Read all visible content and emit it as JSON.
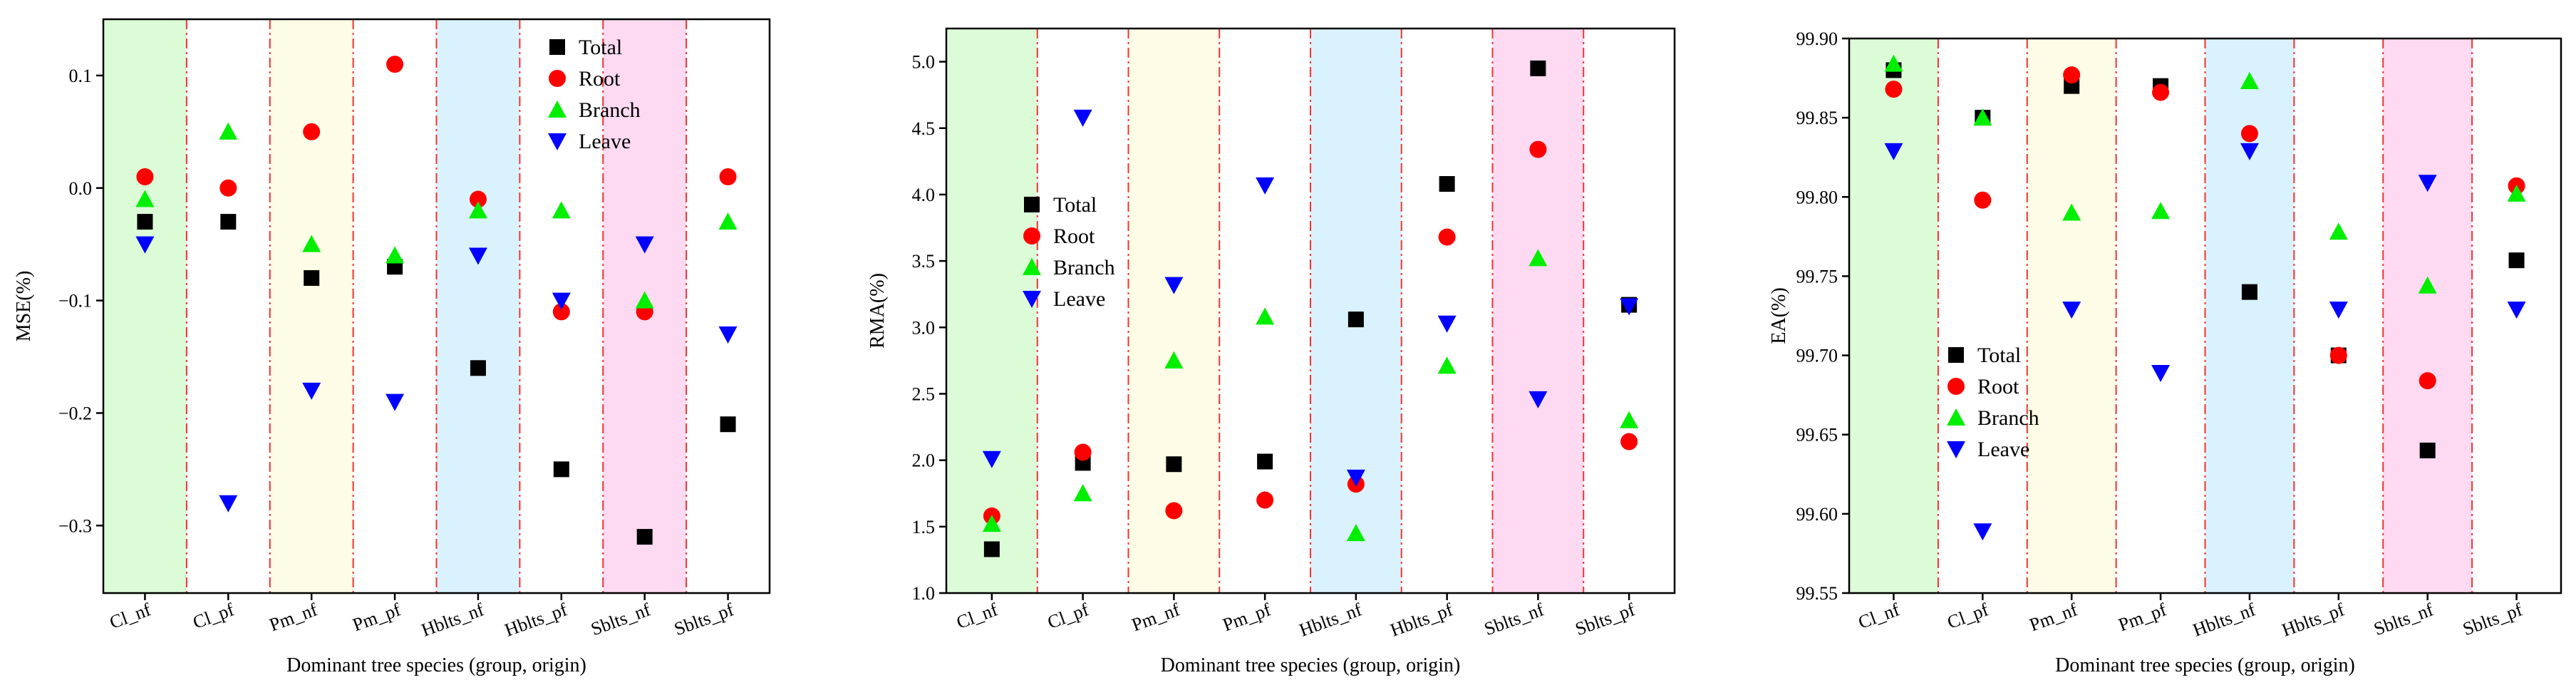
{
  "colors": {
    "total": "#000000",
    "root": "#ff0000",
    "branch": "#00ee00",
    "leave": "#0000ff",
    "divider": "#ee3333",
    "band_cl_nf": "#dcfcd8",
    "band_pm_nf": "#fdfce6",
    "band_hblts_nf": "#d9f2fd",
    "band_sblts_nf": "#fedaf2"
  },
  "chart_data": [
    {
      "type": "scatter",
      "name": "mse",
      "xlabel": "Dominant tree species (group, origin)",
      "ylabel": "MSE(%)",
      "categories": [
        "Cl_nf",
        "Cl_pf",
        "Pm_nf",
        "Pm_pf",
        "Hblts_nf",
        "Hblts_pf",
        "Sblts_nf",
        "Sblts_pf"
      ],
      "ylim": [
        -0.36,
        0.15
      ],
      "yticks": [
        0.1,
        0.0,
        -0.1,
        -0.2,
        -0.3
      ],
      "ytick_labels": [
        "0.1",
        "0.0",
        "−0.1",
        "−0.2",
        "−0.3"
      ],
      "bands": [
        {
          "index": 0,
          "color_key": "band_cl_nf"
        },
        {
          "index": 2,
          "color_key": "band_pm_nf"
        },
        {
          "index": 4,
          "color_key": "band_hblts_nf"
        },
        {
          "index": 6,
          "color_key": "band_sblts_nf"
        }
      ],
      "legend_position": "top-right",
      "series": [
        {
          "name": "Total",
          "marker": "square",
          "color_key": "total",
          "values": [
            -0.03,
            -0.03,
            -0.08,
            -0.07,
            -0.16,
            -0.25,
            -0.31,
            -0.21
          ]
        },
        {
          "name": "Root",
          "marker": "circle",
          "color_key": "root",
          "values": [
            0.01,
            0.0,
            0.05,
            0.11,
            -0.01,
            -0.11,
            -0.11,
            0.01
          ]
        },
        {
          "name": "Branch",
          "marker": "triangle-up",
          "color_key": "branch",
          "values": [
            -0.01,
            0.05,
            -0.05,
            -0.06,
            -0.02,
            -0.02,
            -0.1,
            -0.03
          ]
        },
        {
          "name": "Leave",
          "marker": "triangle-down",
          "color_key": "leave",
          "values": [
            -0.05,
            -0.28,
            -0.18,
            -0.19,
            -0.06,
            -0.1,
            -0.05,
            -0.13
          ]
        }
      ]
    },
    {
      "type": "scatter",
      "name": "rma",
      "xlabel": "Dominant tree species (group, origin)",
      "ylabel": "RMA(%)",
      "categories": [
        "Cl_nf",
        "Cl_pf",
        "Pm_nf",
        "Pm_pf",
        "Hblts_nf",
        "Hblts_pf",
        "Sblts_nf",
        "Sblts_pf"
      ],
      "ylim": [
        1.0,
        5.25
      ],
      "yticks": [
        1.0,
        1.5,
        2.0,
        2.5,
        3.0,
        3.5,
        4.0,
        4.5,
        5.0
      ],
      "ytick_labels": [
        "1.0",
        "1.5",
        "2.0",
        "2.5",
        "3.0",
        "3.5",
        "4.0",
        "4.5",
        "5.0"
      ],
      "bands": [
        {
          "index": 0,
          "color_key": "band_cl_nf"
        },
        {
          "index": 2,
          "color_key": "band_pm_nf"
        },
        {
          "index": 4,
          "color_key": "band_hblts_nf"
        },
        {
          "index": 6,
          "color_key": "band_sblts_nf"
        }
      ],
      "legend_position": "left",
      "series": [
        {
          "name": "Total",
          "marker": "square",
          "color_key": "total",
          "values": [
            1.33,
            1.98,
            1.97,
            1.99,
            3.06,
            4.08,
            4.95,
            3.17
          ]
        },
        {
          "name": "Root",
          "marker": "circle",
          "color_key": "root",
          "values": [
            1.58,
            2.06,
            1.62,
            1.7,
            1.82,
            3.68,
            4.34,
            2.14
          ]
        },
        {
          "name": "Branch",
          "marker": "triangle-up",
          "color_key": "branch",
          "values": [
            1.52,
            1.75,
            2.75,
            3.08,
            1.45,
            2.71,
            3.52,
            2.3
          ]
        },
        {
          "name": "Leave",
          "marker": "triangle-down",
          "color_key": "leave",
          "values": [
            2.01,
            4.58,
            3.32,
            4.07,
            1.87,
            3.03,
            2.46,
            3.16
          ]
        }
      ]
    },
    {
      "type": "scatter",
      "name": "ea",
      "xlabel": "Dominant tree species (group, origin)",
      "ylabel": "EA(%)",
      "categories": [
        "Cl_nf",
        "Cl_pf",
        "Pm_nf",
        "Pm_pf",
        "Hblts_nf",
        "Hblts_pf",
        "Sblts_nf",
        "Sblts_pf"
      ],
      "ylim": [
        99.55,
        99.9
      ],
      "yticks": [
        99.55,
        99.6,
        99.65,
        99.7,
        99.75,
        99.8,
        99.85,
        99.9
      ],
      "ytick_labels": [
        "99.55",
        "99.60",
        "99.65",
        "99.70",
        "99.75",
        "99.80",
        "99.85",
        "99.90"
      ],
      "bands": [
        {
          "index": 0,
          "color_key": "band_cl_nf"
        },
        {
          "index": 2,
          "color_key": "band_pm_nf"
        },
        {
          "index": 4,
          "color_key": "band_hblts_nf"
        },
        {
          "index": 6,
          "color_key": "band_sblts_nf"
        }
      ],
      "legend_position": "lower-left",
      "series": [
        {
          "name": "Total",
          "marker": "square",
          "color_key": "total",
          "values": [
            99.88,
            99.85,
            99.87,
            99.87,
            99.74,
            99.7,
            99.64,
            99.76
          ]
        },
        {
          "name": "Root",
          "marker": "circle",
          "color_key": "root",
          "values": [
            99.868,
            99.798,
            99.877,
            99.866,
            99.84,
            99.7,
            99.684,
            99.807
          ]
        },
        {
          "name": "Branch",
          "marker": "triangle-up",
          "color_key": "branch",
          "values": [
            99.884,
            99.85,
            99.79,
            99.791,
            99.873,
            99.778,
            99.744,
            99.802
          ]
        },
        {
          "name": "Leave",
          "marker": "triangle-down",
          "color_key": "leave",
          "values": [
            99.829,
            99.589,
            99.729,
            99.689,
            99.829,
            99.729,
            99.809,
            99.729
          ]
        }
      ]
    }
  ]
}
